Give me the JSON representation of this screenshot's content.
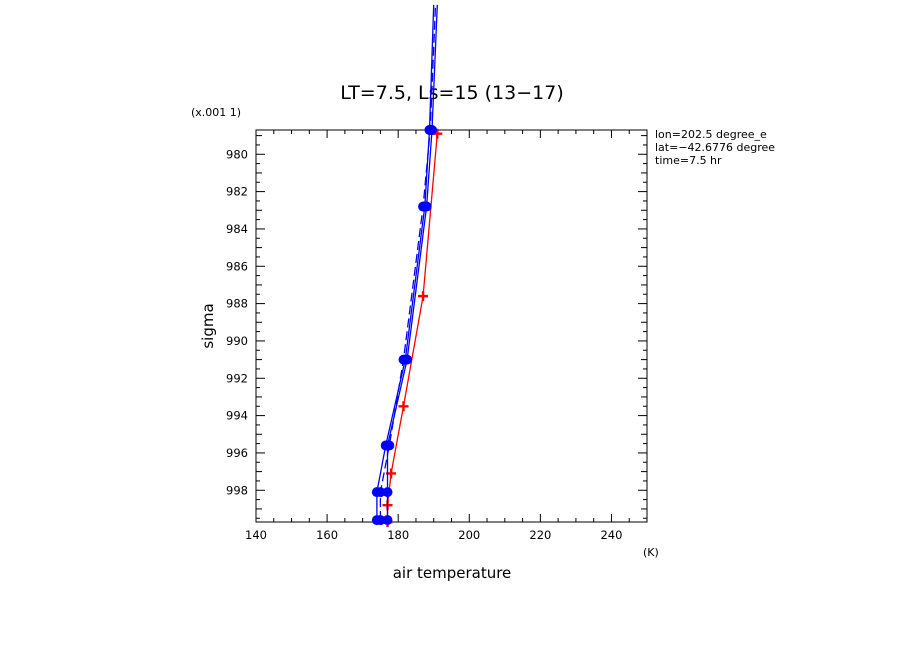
{
  "chart_data": {
    "type": "line",
    "title": "LT=7.5, Ls=15 (13−17)",
    "xlabel": "air temperature",
    "ylabel": "sigma",
    "x_unit": "(K)",
    "y_scale_note": "(x.001 1)",
    "xlim": [
      140,
      250
    ],
    "ylim": [
      999.7,
      978.7
    ],
    "y_inverted": true,
    "x_ticks": [
      140,
      160,
      180,
      200,
      220,
      240
    ],
    "y_ticks": [
      980,
      982,
      984,
      986,
      988,
      990,
      992,
      994,
      996,
      998
    ],
    "annotations": [
      "lon=202.5 degree_e",
      "lat=−42.6776 degree",
      "time=7.5 hr"
    ],
    "series": [
      {
        "color": "#ff0000",
        "marker": "plus",
        "dash": "solid",
        "points": [
          {
            "x": 177.0,
            "y": 999.7
          },
          {
            "x": 177.0,
            "y": 998.8
          },
          {
            "x": 178.0,
            "y": 997.1
          },
          {
            "x": 181.5,
            "y": 993.5
          },
          {
            "x": 187.0,
            "y": 987.6
          },
          {
            "x": 191.0,
            "y": 978.9
          }
        ]
      },
      {
        "color": "#0000ff",
        "marker": "circle",
        "dash": "solid",
        "points": [
          {
            "x": 174.0,
            "y": 999.6
          },
          {
            "x": 174.0,
            "y": 998.1
          },
          {
            "x": 176.5,
            "y": 995.6
          },
          {
            "x": 182.0,
            "y": 991.0
          },
          {
            "x": 187.5,
            "y": 982.8
          },
          {
            "x": 188.8,
            "y": 978.7
          },
          {
            "x": 190.0,
            "y": 972.0
          }
        ]
      },
      {
        "color": "#0000ff",
        "marker": "circle",
        "dash": "solid",
        "points": [
          {
            "x": 177.0,
            "y": 999.6
          },
          {
            "x": 177.0,
            "y": 998.1
          },
          {
            "x": 177.0,
            "y": 995.6
          },
          {
            "x": 182.5,
            "y": 991.0
          },
          {
            "x": 188.0,
            "y": 982.8
          },
          {
            "x": 189.5,
            "y": 978.7
          },
          {
            "x": 191.0,
            "y": 972.0
          }
        ]
      },
      {
        "color": "#0000ff",
        "marker": "circle",
        "dash": "dashed",
        "points": [
          {
            "x": 175.0,
            "y": 999.6
          },
          {
            "x": 175.0,
            "y": 998.1
          },
          {
            "x": 177.5,
            "y": 995.6
          },
          {
            "x": 181.5,
            "y": 991.0
          },
          {
            "x": 187.0,
            "y": 982.8
          },
          {
            "x": 189.0,
            "y": 978.7
          },
          {
            "x": 190.5,
            "y": 972.0
          }
        ]
      }
    ]
  }
}
